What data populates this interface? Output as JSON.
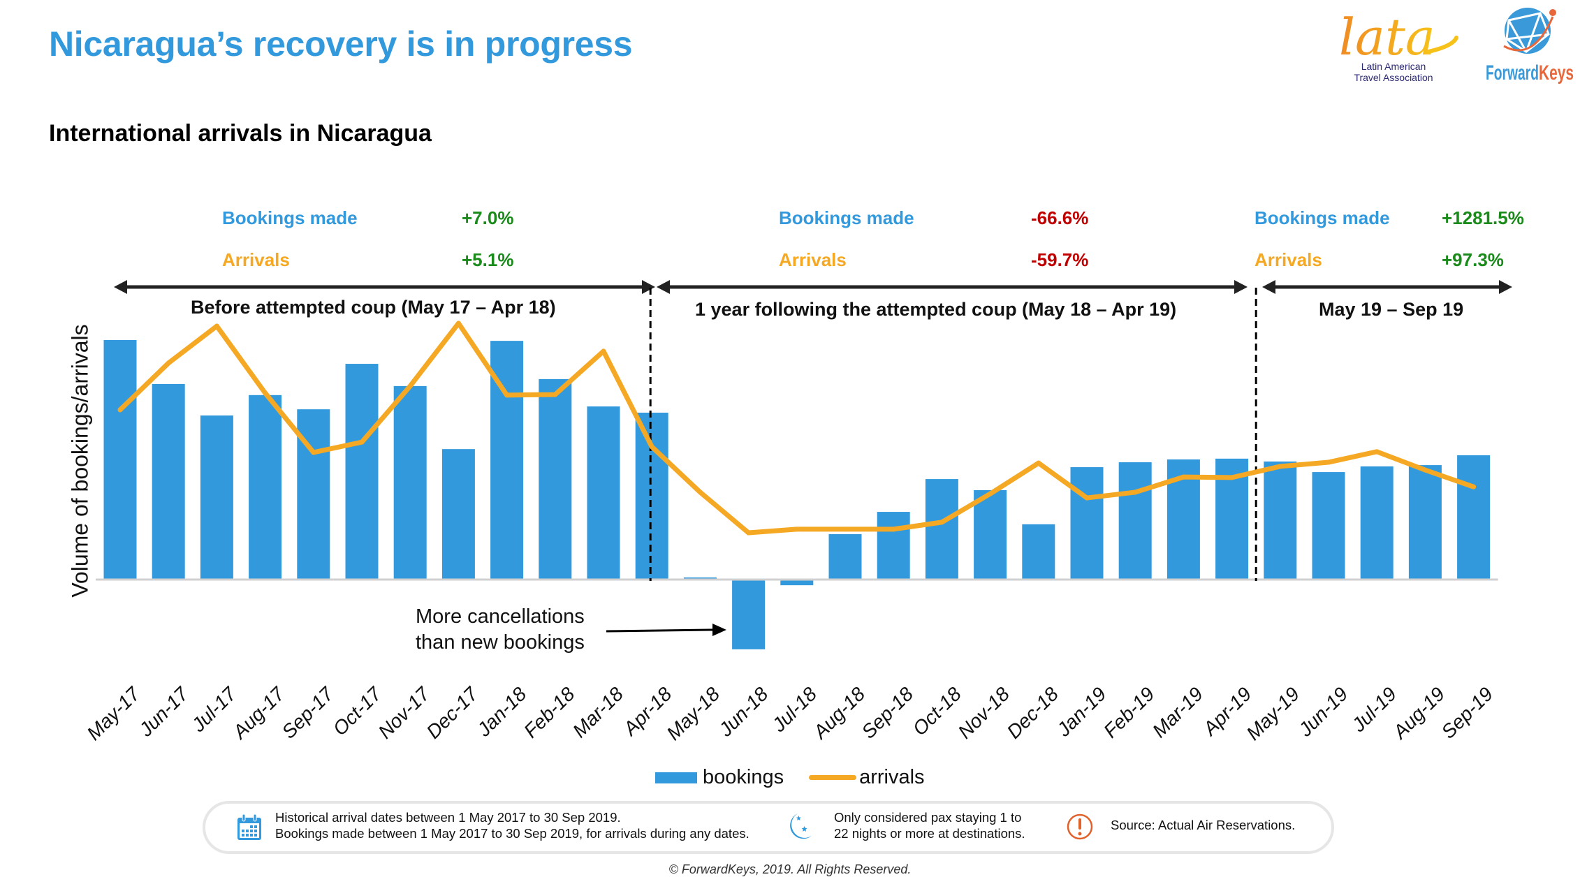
{
  "header": {
    "title": "Nicaragua’s recovery is in progress",
    "subtitle": "International arrivals in Nicaragua",
    "logos": [
      {
        "name": "lata",
        "wordmark": "lata",
        "text_line1": "Latin American",
        "text_line2": "Travel Association"
      },
      {
        "name": "forwardkeys",
        "text_a": "Forward",
        "text_b": "Keys"
      }
    ]
  },
  "periods": [
    {
      "label": "Before attempted coup (May 17 – Apr 18)",
      "bookings_label": "Bookings made",
      "bookings_change": "+7.0%",
      "bookings_trend": "up",
      "arrivals_label": "Arrivals",
      "arrivals_change": "+5.1%",
      "arrivals_trend": "up"
    },
    {
      "label": "1 year following the attempted coup (May 18 – Apr 19)",
      "bookings_label": "Bookings made",
      "bookings_change": "-66.6%",
      "bookings_trend": "down",
      "arrivals_label": "Arrivals",
      "arrivals_change": "-59.7%",
      "arrivals_trend": "down"
    },
    {
      "label": "May 19 – Sep 19",
      "bookings_label": "Bookings made",
      "bookings_change": "+1281.5%",
      "bookings_trend": "up",
      "arrivals_label": "Arrivals",
      "arrivals_change": "+97.3%",
      "arrivals_trend": "up"
    }
  ],
  "colors": {
    "title": "#3399dd",
    "bookings": "#3399dd",
    "arrivals": "#f5a823",
    "positive": "#1a8a1a",
    "negative": "#c00000",
    "note_icon_blue": "#3399dd",
    "note_icon_orange": "#e0612a"
  },
  "chart_data": {
    "type": "bar",
    "title": "International arrivals in Nicaragua",
    "xlabel": "",
    "ylabel": "Volume of bookings/arrivals",
    "ylim": [
      -30,
      100
    ],
    "grid": false,
    "legend_position": "bottom-center",
    "categories": [
      "May-17",
      "Jun-17",
      "Jul-17",
      "Aug-17",
      "Sep-17",
      "Oct-17",
      "Nov-17",
      "Dec-17",
      "Jan-18",
      "Feb-18",
      "Mar-18",
      "Apr-18",
      "May-18",
      "Jun-18",
      "Jul-18",
      "Aug-18",
      "Sep-18",
      "Oct-18",
      "Nov-18",
      "Dec-18",
      "Jan-19",
      "Feb-19",
      "Mar-19",
      "Apr-19",
      "May-19",
      "Jun-19",
      "Jul-19",
      "Aug-19",
      "Sep-19"
    ],
    "series": [
      {
        "name": "bookings",
        "kind": "bar",
        "values": [
          92.7,
          75.7,
          63.5,
          71.4,
          65.9,
          83.5,
          74.9,
          50.5,
          92.4,
          77.6,
          67.0,
          64.6,
          0.8,
          -27.0,
          -2.2,
          17.6,
          26.2,
          38.9,
          34.6,
          21.4,
          43.5,
          45.4,
          46.5,
          46.8,
          45.7,
          41.6,
          43.8,
          44.3,
          48.1
        ]
      },
      {
        "name": "arrivals",
        "kind": "line",
        "values": [
          65.7,
          83.8,
          98.1,
          72.2,
          49.2,
          53.2,
          74.9,
          99.2,
          71.4,
          71.6,
          88.4,
          51.4,
          33.8,
          18.1,
          19.5,
          19.5,
          19.5,
          22.2,
          33.2,
          45.1,
          31.6,
          33.8,
          39.7,
          39.5,
          43.8,
          45.4,
          49.5,
          42.4,
          35.9
        ]
      }
    ],
    "period_dividers_after": [
      "Apr-18",
      "Apr-19"
    ],
    "annotations": [
      {
        "text_line1": "More cancellations",
        "text_line2": "than new bookings",
        "points_to": "Jun-18"
      }
    ]
  },
  "legend": {
    "bookings": "bookings",
    "arrivals": "arrivals"
  },
  "notes": [
    {
      "icon": "calendar-icon",
      "line1": "Historical arrival dates between 1 May 2017 to 30 Sep 2019.",
      "line2": "Bookings made between 1 May 2017 to 30 Sep 2019, for arrivals during any dates."
    },
    {
      "icon": "moon-stars-icon",
      "line1": "Only considered pax staying 1 to",
      "line2": "22 nights or more at destinations."
    },
    {
      "icon": "alert-icon",
      "line1": "Source: Actual Air Reservations.",
      "line2": ""
    }
  ],
  "footer": {
    "copyright": "© ForwardKeys, 2019. All Rights Reserved."
  }
}
